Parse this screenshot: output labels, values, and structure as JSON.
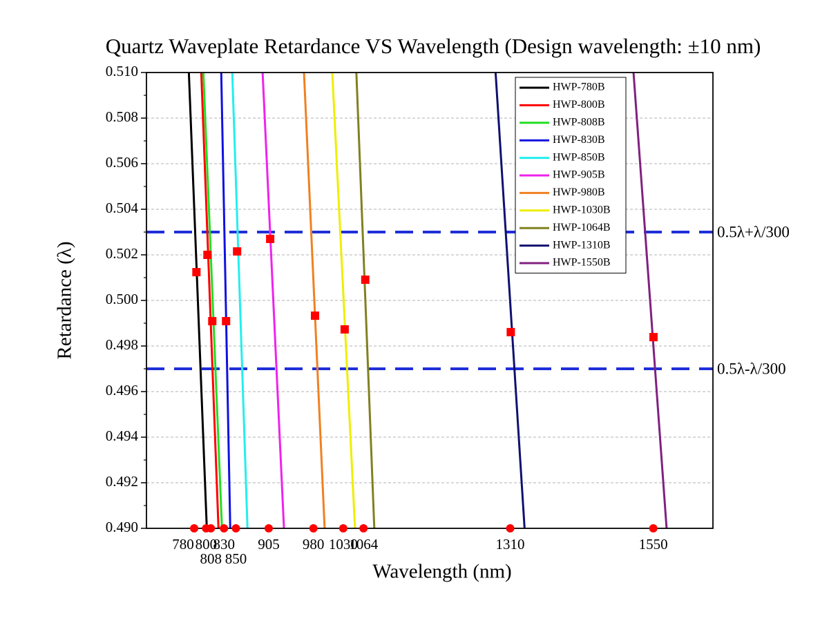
{
  "chart_data": {
    "type": "line",
    "title": "Quartz Waveplate Retardance VS Wavelength (Design wavelength: ±10 nm)",
    "x_label": "Wavelength (nm)",
    "y_label": "Retardance (λ)",
    "xlim": [
      700,
      1650
    ],
    "ylim": [
      0.49,
      0.51
    ],
    "xticks": [
      780,
      800,
      808,
      830,
      850,
      905,
      980,
      1030,
      1064,
      1310,
      1550
    ],
    "yticks": [
      {
        "value": 0.49,
        "label": "0.490"
      },
      {
        "value": 0.492,
        "label": "0.492"
      },
      {
        "value": 0.494,
        "label": "0.494"
      },
      {
        "value": 0.496,
        "label": "0.496"
      },
      {
        "value": 0.498,
        "label": "0.498"
      },
      {
        "value": 0.5,
        "label": "0.500"
      },
      {
        "value": 0.502,
        "label": "0.502"
      },
      {
        "value": 0.504,
        "label": "0.504"
      },
      {
        "value": 0.506,
        "label": "0.506"
      },
      {
        "value": 0.508,
        "label": "0.508"
      },
      {
        "value": 0.51,
        "label": "0.510"
      }
    ],
    "grid": true,
    "legend": "top-right",
    "series": [
      {
        "name": "HWP-780B",
        "color": "#000000",
        "x": [
          771.1,
          786.2,
          801.2
        ],
        "values": [
          0.51,
          0.5,
          0.49
        ]
      },
      {
        "name": "HWP-800B",
        "color": "#ff0000",
        "x": [
          791.9,
          806.4,
          820.8
        ],
        "values": [
          0.51,
          0.5,
          0.49
        ]
      },
      {
        "name": "HWP-808B",
        "color": "#22dd22",
        "x": [
          795.4,
          811.0,
          826.6
        ],
        "values": [
          0.51,
          0.5,
          0.49
        ]
      },
      {
        "name": "HWP-830B",
        "color": "#1010e0",
        "x": [
          825.4,
          833.0,
          840.5
        ],
        "values": [
          0.51,
          0.5,
          0.49
        ]
      },
      {
        "name": "HWP-850B",
        "color": "#22eeee",
        "x": [
          843.9,
          856.7,
          869.4
        ],
        "values": [
          0.51,
          0.5,
          0.49
        ]
      },
      {
        "name": "HWP-905B",
        "color": "#ee22ee",
        "x": [
          894.8,
          912.7,
          930.6
        ],
        "values": [
          0.51,
          0.5,
          0.49
        ]
      },
      {
        "name": "HWP-980B",
        "color": "#f08020",
        "x": [
          964.2,
          981.5,
          998.8
        ],
        "values": [
          0.51,
          0.5,
          0.49
        ]
      },
      {
        "name": "HWP-1030B",
        "color": "#eeee00",
        "x": [
          1011.6,
          1030.7,
          1049.7
        ],
        "values": [
          0.51,
          0.5,
          0.49
        ]
      },
      {
        "name": "HWP-1064B",
        "color": "#808020",
        "x": [
          1052.0,
          1067.1,
          1082.1
        ],
        "values": [
          0.51,
          0.5,
          0.49
        ]
      },
      {
        "name": "HWP-1310B",
        "color": "#101070",
        "x": [
          1285.5,
          1309.8,
          1334.1
        ],
        "values": [
          0.51,
          0.5,
          0.49
        ]
      },
      {
        "name": "HWP-1550B",
        "color": "#802080",
        "x": [
          1516.8,
          1544.6,
          1572.3
        ],
        "values": [
          0.51,
          0.5,
          0.49
        ]
      }
    ],
    "points": {
      "color": "#ff0000",
      "x": [
        783.8,
        802.3,
        810.4,
        833.5,
        852.0,
        907.5,
        982.7,
        1032.4,
        1067.0,
        1311.0,
        1550.3
      ],
      "values": [
        0.50124,
        0.502,
        0.49909,
        0.49909,
        0.50215,
        0.5027,
        0.49933,
        0.49873,
        0.50091,
        0.49861,
        0.49839
      ]
    },
    "annotations": [
      {
        "text": "0.5λ+λ/300",
        "y": 0.503,
        "color": "#1f2fd8"
      },
      {
        "text": "0.5λ-λ/300",
        "y": 0.497,
        "color": "#1f2fd8"
      }
    ]
  }
}
